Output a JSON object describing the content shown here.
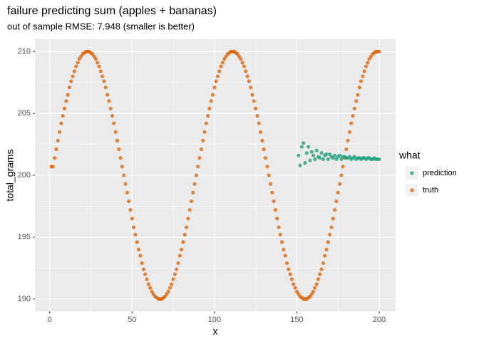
{
  "chart_data": {
    "type": "scatter",
    "title": "failure predicting sum (apples + bananas)",
    "subtitle": "out of sample RMSE: 7.948 (smaller is better)",
    "x_label": "x",
    "y_label": "total_grams",
    "legend_title": "what",
    "xlim": [
      -8.95,
      209.95
    ],
    "ylim": [
      189,
      211
    ],
    "xticks": [
      0,
      50,
      100,
      150,
      200
    ],
    "yticks": [
      190,
      195,
      200,
      205,
      210
    ],
    "grid": true,
    "series": [
      {
        "name": "prediction",
        "color": "#1b9e77",
        "x": [
          151,
          152,
          153,
          154,
          155,
          156,
          157,
          158,
          159,
          160,
          161,
          162,
          163,
          164,
          165,
          166,
          167,
          168,
          169,
          170,
          171,
          172,
          173,
          174,
          175,
          176,
          177,
          178,
          179,
          180,
          181,
          182,
          183,
          184,
          185,
          186,
          187,
          188,
          189,
          190,
          191,
          192,
          193,
          194,
          195,
          196,
          197,
          198,
          199,
          200
        ],
        "values": [
          201.6,
          200.8,
          202.3,
          202.6,
          201.0,
          201.8,
          202.3,
          201.2,
          201.9,
          201.6,
          201.3,
          202.0,
          201.5,
          201.4,
          201.8,
          201.3,
          201.6,
          201.7,
          201.3,
          201.7,
          201.5,
          201.4,
          201.6,
          201.3,
          201.5,
          201.6,
          201.3,
          201.5,
          201.5,
          201.4,
          201.4,
          201.5,
          201.3,
          201.4,
          201.5,
          201.3,
          201.4,
          201.4,
          201.3,
          201.4,
          201.4,
          201.3,
          201.4,
          201.4,
          201.3,
          201.3,
          201.4,
          201.3,
          201.3,
          201.3
        ]
      },
      {
        "name": "truth",
        "color": "#d95f02",
        "x": [
          1,
          2,
          3,
          4,
          5,
          6,
          7,
          8,
          9,
          10,
          11,
          12,
          13,
          14,
          15,
          16,
          17,
          18,
          19,
          20,
          21,
          22,
          23,
          24,
          25,
          26,
          27,
          28,
          29,
          30,
          31,
          32,
          33,
          34,
          35,
          36,
          37,
          38,
          39,
          40,
          41,
          42,
          43,
          44,
          45,
          46,
          47,
          48,
          49,
          50,
          51,
          52,
          53,
          54,
          55,
          56,
          57,
          58,
          59,
          60,
          61,
          62,
          63,
          64,
          65,
          66,
          67,
          68,
          69,
          70,
          71,
          72,
          73,
          74,
          75,
          76,
          77,
          78,
          79,
          80,
          81,
          82,
          83,
          84,
          85,
          86,
          87,
          88,
          89,
          90,
          91,
          92,
          93,
          94,
          95,
          96,
          97,
          98,
          99,
          100,
          101,
          102,
          103,
          104,
          105,
          106,
          107,
          108,
          109,
          110,
          111,
          112,
          113,
          114,
          115,
          116,
          117,
          118,
          119,
          120,
          121,
          122,
          123,
          124,
          125,
          126,
          127,
          128,
          129,
          130,
          131,
          132,
          133,
          134,
          135,
          136,
          137,
          138,
          139,
          140,
          141,
          142,
          143,
          144,
          145,
          146,
          147,
          148,
          149,
          150,
          151,
          152,
          153,
          154,
          155,
          156,
          157,
          158,
          159,
          160,
          161,
          162,
          163,
          164,
          165,
          166,
          167,
          168,
          169,
          170,
          171,
          172,
          173,
          174,
          175,
          176,
          177,
          178,
          179,
          180,
          181,
          182,
          183,
          184,
          185,
          186,
          187,
          188,
          189,
          190,
          191,
          192,
          193,
          194,
          195,
          196,
          197,
          198,
          199,
          200
        ],
        "values": [
          200.7,
          200.7,
          201.4,
          202.1,
          202.8,
          203.5,
          204.2,
          204.8,
          205.4,
          206,
          206.5,
          207.1,
          207.6,
          208,
          208.4,
          208.8,
          209.1,
          209.4,
          209.6,
          209.8,
          209.9,
          210,
          210,
          210,
          209.9,
          209.8,
          209.6,
          209.4,
          209.1,
          208.8,
          208.4,
          208,
          207.6,
          207.1,
          206.5,
          206,
          205.4,
          204.8,
          204.2,
          203.5,
          202.8,
          202.1,
          201.4,
          200.7,
          200,
          199.3,
          198.6,
          197.9,
          197.2,
          196.5,
          195.8,
          195.2,
          194.6,
          194,
          193.5,
          192.9,
          192.4,
          192,
          191.6,
          191.2,
          190.9,
          190.6,
          190.4,
          190.2,
          190.1,
          190,
          190,
          190,
          190.1,
          190.2,
          190.4,
          190.6,
          190.9,
          191.2,
          191.6,
          192,
          192.4,
          192.9,
          193.5,
          194,
          194.6,
          195.2,
          195.8,
          196.5,
          197.2,
          197.9,
          198.6,
          199.3,
          200,
          200.7,
          201.4,
          202.1,
          202.8,
          203.5,
          204.2,
          204.8,
          205.4,
          206,
          206.5,
          207.1,
          207.6,
          208,
          208.4,
          208.8,
          209.1,
          209.4,
          209.6,
          209.8,
          209.9,
          210,
          210,
          210,
          209.9,
          209.8,
          209.6,
          209.4,
          209.1,
          208.8,
          208.4,
          208,
          207.6,
          207.1,
          206.5,
          206,
          205.4,
          204.8,
          204.2,
          203.5,
          202.8,
          202.1,
          201.4,
          200.7,
          200,
          199.3,
          198.6,
          197.9,
          197.2,
          196.5,
          195.8,
          195.2,
          194.6,
          194,
          193.5,
          192.9,
          192.4,
          192,
          191.6,
          191.2,
          190.9,
          190.6,
          190.4,
          190.2,
          190.1,
          190,
          190,
          190,
          190.1,
          190.2,
          190.4,
          190.6,
          190.9,
          191.2,
          191.6,
          192,
          192.4,
          192.9,
          193.5,
          194,
          194.6,
          195.2,
          195.8,
          196.5,
          197.2,
          197.9,
          198.6,
          199.3,
          200,
          200.7,
          201.4,
          202.1,
          202.8,
          203.5,
          204.2,
          204.8,
          205.4,
          206,
          206.5,
          207.1,
          207.6,
          208,
          208.4,
          208.8,
          209.1,
          209.4,
          209.6,
          209.8,
          209.9,
          210,
          210,
          210
        ]
      }
    ]
  }
}
